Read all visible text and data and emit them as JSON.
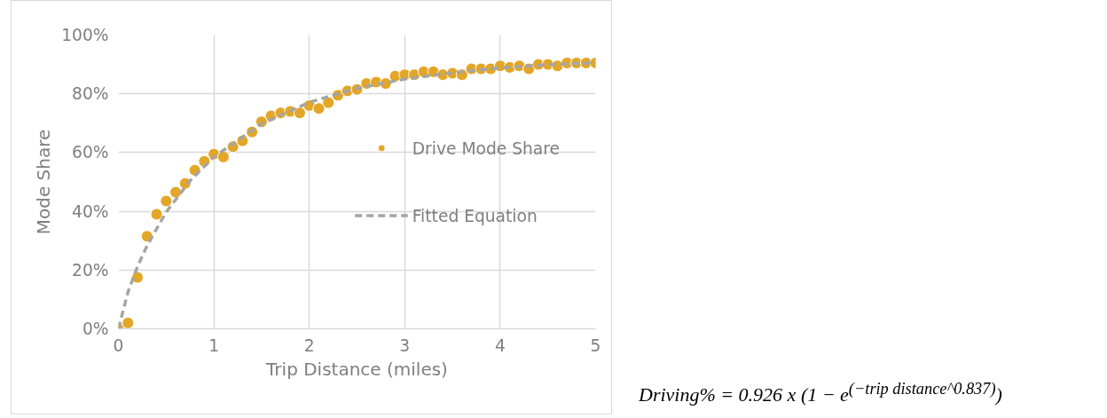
{
  "chart_data": {
    "type": "scatter",
    "xlabel": "Trip Distance (miles)",
    "ylabel": "Mode Share",
    "xlim": [
      0,
      5
    ],
    "ylim": [
      0,
      100
    ],
    "xticks": [
      0,
      1,
      2,
      3,
      4,
      5
    ],
    "yticks": [
      {
        "value": 0,
        "label": "0%"
      },
      {
        "value": 20,
        "label": "20%"
      },
      {
        "value": 40,
        "label": "40%"
      },
      {
        "value": 60,
        "label": "60%"
      },
      {
        "value": 80,
        "label": "80%"
      },
      {
        "value": 100,
        "label": "100%"
      }
    ],
    "grid": true,
    "legend": "right",
    "series": [
      {
        "marker": "circle",
        "name": "Drive Mode Share",
        "color": "#e3a626",
        "x": [
          0,
          0.1,
          0.2,
          0.3,
          0.4,
          0.5,
          0.6,
          0.7,
          0.8,
          0.9,
          1.0,
          1.1,
          1.2,
          1.3,
          1.4,
          1.5,
          1.6,
          1.7,
          1.8,
          1.9,
          2.0,
          2.1,
          2.2,
          2.3,
          2.4,
          2.5,
          2.6,
          2.7,
          2.8,
          2.9,
          3.0,
          3.1,
          3.2,
          3.3,
          3.4,
          3.5,
          3.6,
          3.7,
          3.8,
          3.9,
          4.0,
          4.1,
          4.2,
          4.3,
          4.4,
          4.5,
          4.6,
          4.7,
          4.8,
          4.9,
          5.0
        ],
        "values": [
          0,
          2,
          17.5,
          31.5,
          39,
          43.5,
          46.5,
          49.5,
          54,
          57,
          59.5,
          58.5,
          62,
          64,
          67,
          70.5,
          72.5,
          73.5,
          74,
          73.5,
          76,
          75,
          77,
          79.5,
          81,
          81.5,
          83.5,
          84,
          83.5,
          86,
          86.5,
          86.5,
          87.5,
          87.5,
          86.5,
          87,
          86.5,
          88.5,
          88.5,
          88.5,
          89.5,
          89,
          89.5,
          88.5,
          90,
          90,
          89.5,
          90.5,
          90.5,
          90.5,
          90.5
        ]
      },
      {
        "type": "line",
        "name": "Fitted Equation",
        "color": "#a5a5a5",
        "line_style": "dashed",
        "x": [
          0,
          0.1,
          0.2,
          0.3,
          0.5,
          0.75,
          1,
          1.5,
          2,
          2.5,
          3,
          3.5,
          4,
          4.5,
          5
        ],
        "values": [
          0,
          12.5,
          21.2,
          28.3,
          39.7,
          50.4,
          58.5,
          69.8,
          77.1,
          81.9,
          85.0,
          87.2,
          88.8,
          89.9,
          90.6
        ]
      }
    ],
    "annotations": [
      "Driving% =  0.926 x (1 − e$^{(−trip distance^0.837)}$)"
    ]
  }
}
